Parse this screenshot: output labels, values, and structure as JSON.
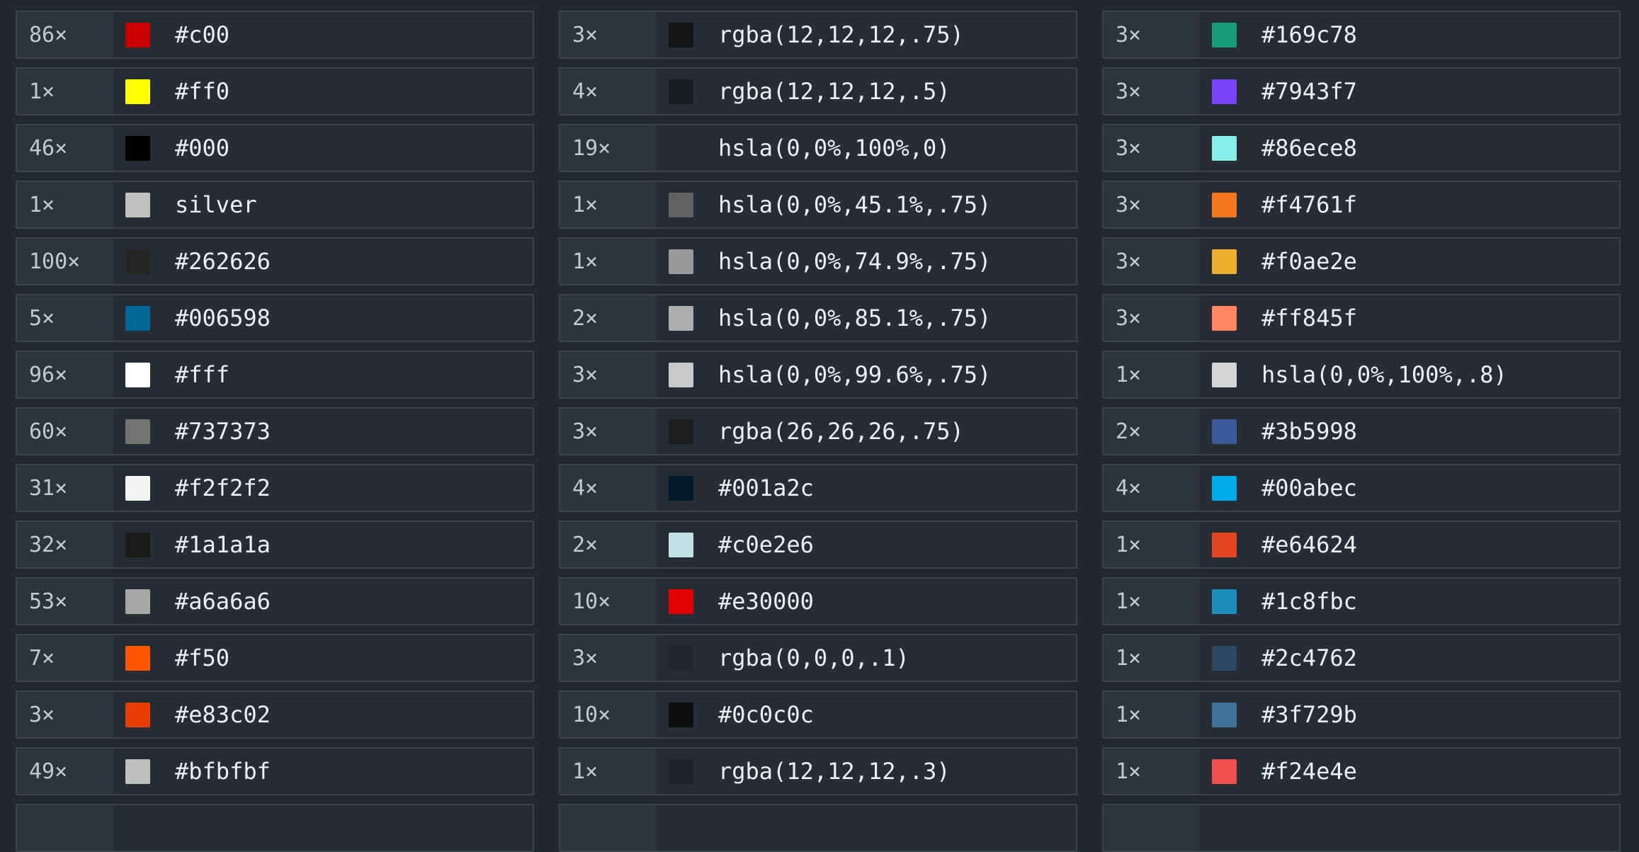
{
  "theme": {
    "page_bg": "#232830",
    "row_bg": "#272c35",
    "count_bg": "#2d343d",
    "border_color": "#3b424c",
    "count_text_color": "#c3c9d1",
    "value_text_color": "#eef1f4"
  },
  "color_usage": {
    "multiply_symbol": "×",
    "columns": [
      {
        "rows": [
          {
            "count": "86×",
            "value": "#c00"
          },
          {
            "count": "1×",
            "value": "#ff0"
          },
          {
            "count": "46×",
            "value": "#000"
          },
          {
            "count": "1×",
            "value": "silver"
          },
          {
            "count": "100×",
            "value": "#262626"
          },
          {
            "count": "5×",
            "value": "#006598"
          },
          {
            "count": "96×",
            "value": "#fff"
          },
          {
            "count": "60×",
            "value": "#737373"
          },
          {
            "count": "31×",
            "value": "#f2f2f2"
          },
          {
            "count": "32×",
            "value": "#1a1a1a"
          },
          {
            "count": "53×",
            "value": "#a6a6a6"
          },
          {
            "count": "7×",
            "value": "#f50"
          },
          {
            "count": "3×",
            "value": "#e83c02"
          },
          {
            "count": "49×",
            "value": "#bfbfbf"
          }
        ]
      },
      {
        "rows": [
          {
            "count": "3×",
            "value": "rgba(12,12,12,.75)"
          },
          {
            "count": "4×",
            "value": "rgba(12,12,12,.5)"
          },
          {
            "count": "19×",
            "value": "hsla(0,0%,100%,0)"
          },
          {
            "count": "1×",
            "value": "hsla(0,0%,45.1%,.75)"
          },
          {
            "count": "1×",
            "value": "hsla(0,0%,74.9%,.75)"
          },
          {
            "count": "2×",
            "value": "hsla(0,0%,85.1%,.75)"
          },
          {
            "count": "3×",
            "value": "hsla(0,0%,99.6%,.75)"
          },
          {
            "count": "3×",
            "value": "rgba(26,26,26,.75)"
          },
          {
            "count": "4×",
            "value": "#001a2c"
          },
          {
            "count": "2×",
            "value": "#c0e2e6"
          },
          {
            "count": "10×",
            "value": "#e30000"
          },
          {
            "count": "3×",
            "value": "rgba(0,0,0,.1)"
          },
          {
            "count": "10×",
            "value": "#0c0c0c"
          },
          {
            "count": "1×",
            "value": "rgba(12,12,12,.3)"
          }
        ]
      },
      {
        "rows": [
          {
            "count": "3×",
            "value": "#169c78"
          },
          {
            "count": "3×",
            "value": "#7943f7"
          },
          {
            "count": "3×",
            "value": "#86ece8"
          },
          {
            "count": "3×",
            "value": "#f4761f"
          },
          {
            "count": "3×",
            "value": "#f0ae2e"
          },
          {
            "count": "3×",
            "value": "#ff845f"
          },
          {
            "count": "1×",
            "value": "hsla(0,0%,100%,.8)"
          },
          {
            "count": "2×",
            "value": "#3b5998"
          },
          {
            "count": "4×",
            "value": "#00abec"
          },
          {
            "count": "1×",
            "value": "#e64624"
          },
          {
            "count": "1×",
            "value": "#1c8fbc"
          },
          {
            "count": "1×",
            "value": "#2c4762"
          },
          {
            "count": "1×",
            "value": "#3f729b"
          },
          {
            "count": "1×",
            "value": "#f24e4e"
          }
        ]
      }
    ]
  }
}
